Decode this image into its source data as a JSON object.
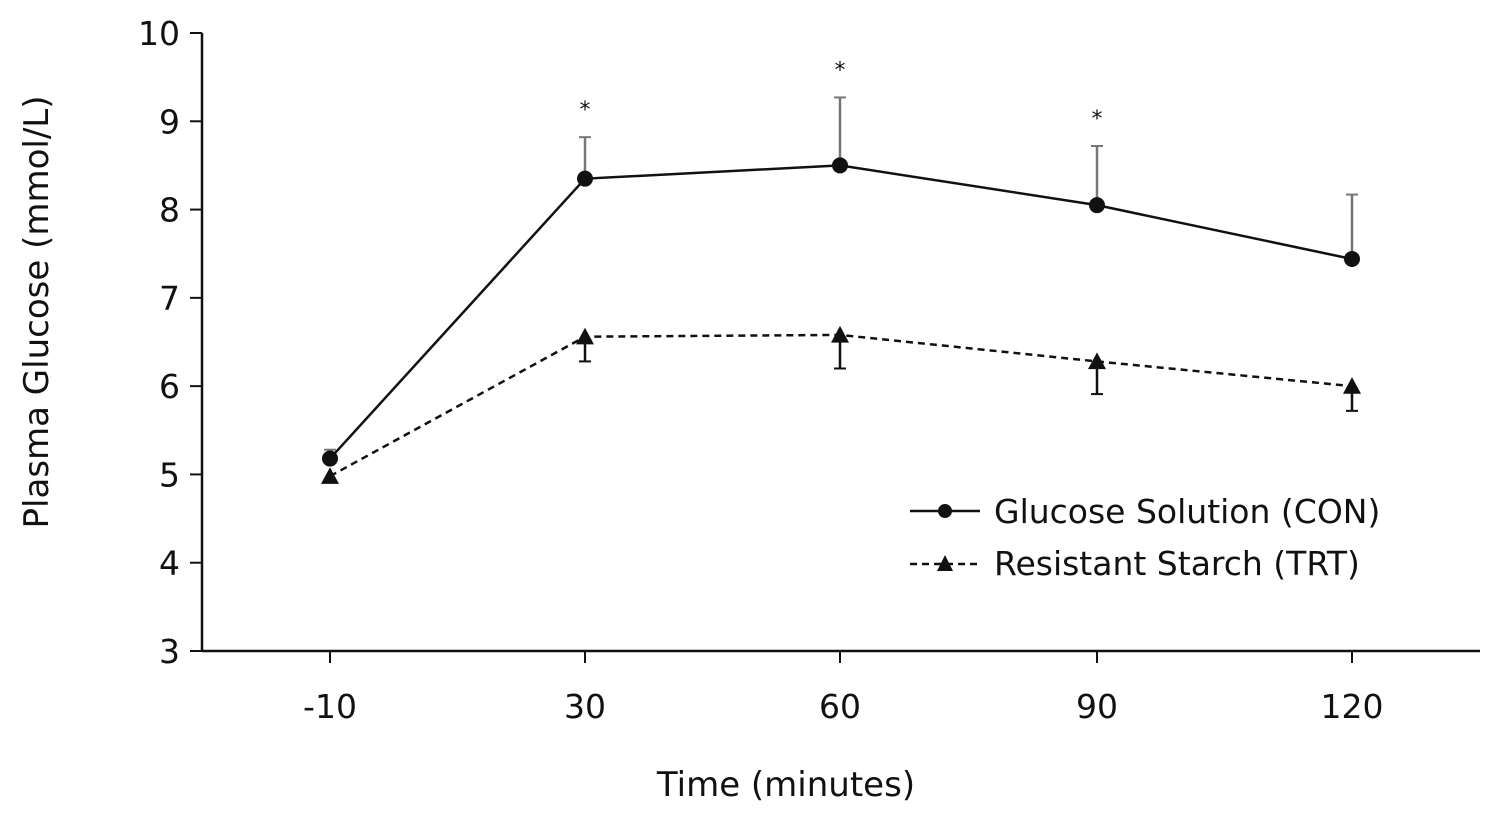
{
  "chart_data": {
    "type": "line",
    "title": "",
    "xlabel": "Time (minutes)",
    "ylabel": "Plasma Glucose (mmol/L)",
    "categories": [
      "-10",
      "30",
      "60",
      "90",
      "120"
    ],
    "ylim": [
      3,
      10
    ],
    "yticks": [
      3,
      4,
      5,
      6,
      7,
      8,
      9,
      10
    ],
    "legend_position": "lower-right",
    "series": [
      {
        "name": "Glucose Solution (CON)",
        "marker": "circle",
        "line_style": "solid",
        "values": [
          5.18,
          8.35,
          8.5,
          8.05,
          7.44
        ],
        "error_upper": [
          0.1,
          0.47,
          0.77,
          0.67,
          0.73
        ]
      },
      {
        "name": "Resistant Starch (TRT)",
        "marker": "triangle",
        "line_style": "dashed",
        "values": [
          4.98,
          6.56,
          6.58,
          6.28,
          6.0
        ],
        "error_lower": [
          0.0,
          0.28,
          0.38,
          0.37,
          0.28
        ]
      }
    ],
    "annotations": [
      {
        "category": "30",
        "text": "*"
      },
      {
        "category": "60",
        "text": "*"
      },
      {
        "category": "90",
        "text": "*"
      }
    ]
  }
}
